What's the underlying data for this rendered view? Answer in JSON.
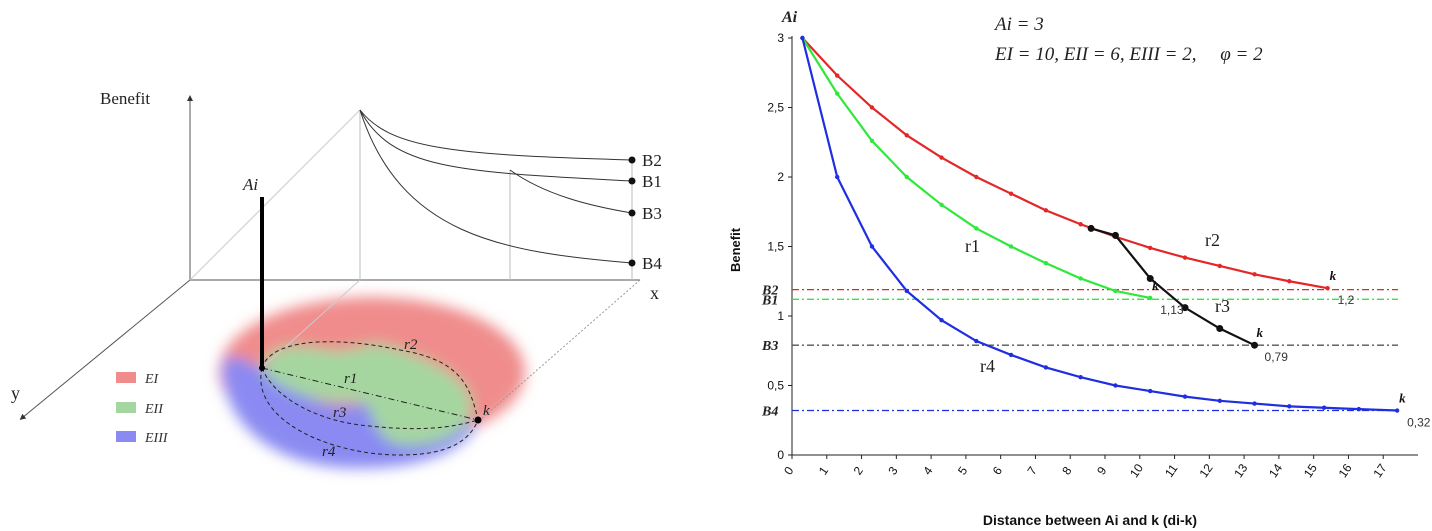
{
  "left_panel": {
    "benefit_axis_label": "Benefit",
    "x_axis_label": "x",
    "y_axis_label": "y",
    "origin_label": "Ai",
    "end_labels": [
      "B2",
      "B1",
      "B3",
      "B4"
    ],
    "route_labels": [
      "r2",
      "r1",
      "r3",
      "r4"
    ],
    "target_label": "k",
    "legend": [
      {
        "label": "EI",
        "color": "#f08c8c"
      },
      {
        "label": "EII",
        "color": "#a6d6a0"
      },
      {
        "label": "EIII",
        "color": "#8a8af2"
      }
    ]
  },
  "chart_data": {
    "type": "line",
    "params": {
      "line1": "Ai = 3",
      "line2": "EI = 10, EII = 6, EIII = 2,     φ = 2"
    },
    "xlabel": "Distance between Ai and k (di-k)",
    "ylabel": "Benefit",
    "xlim": [
      0,
      18
    ],
    "ylim": [
      0,
      3
    ],
    "x_ticks": [
      "0",
      "1",
      "2",
      "3",
      "4",
      "5",
      "6",
      "7",
      "8",
      "9",
      "10",
      "11",
      "12",
      "13",
      "14",
      "15",
      "16",
      "17"
    ],
    "y_ticks": [
      "0",
      "0,5",
      "1",
      "1,5",
      "2",
      "2,5",
      "3"
    ],
    "origin_label": "Ai",
    "series": [
      {
        "name": "r2",
        "color": "#e32727",
        "end_label": "k",
        "end_value_label": "1,2",
        "x": [
          0.3,
          1.3,
          2.3,
          3.3,
          4.3,
          5.3,
          6.3,
          7.3,
          8.3,
          9.3,
          10.3,
          11.3,
          12.3,
          13.3,
          14.3,
          15.4
        ],
        "y": [
          3.0,
          2.73,
          2.5,
          2.3,
          2.14,
          2.0,
          1.88,
          1.76,
          1.66,
          1.57,
          1.49,
          1.42,
          1.36,
          1.3,
          1.25,
          1.2
        ]
      },
      {
        "name": "r1",
        "color": "#2ee83a",
        "end_label": "k",
        "end_value_label": "1,13",
        "x": [
          0.3,
          1.3,
          2.3,
          3.3,
          4.3,
          5.3,
          6.3,
          7.3,
          8.3,
          9.3,
          10.3
        ],
        "y": [
          3.0,
          2.6,
          2.26,
          2.0,
          1.8,
          1.63,
          1.5,
          1.38,
          1.27,
          1.18,
          1.13
        ]
      },
      {
        "name": "r3",
        "color": "#111111",
        "end_label": "k",
        "end_value_label": "0,79",
        "x": [
          8.6,
          9.3,
          10.3,
          11.3,
          12.3,
          13.3
        ],
        "y": [
          1.63,
          1.58,
          1.27,
          1.06,
          0.91,
          0.79
        ]
      },
      {
        "name": "r4",
        "color": "#1f2ee0",
        "end_label": "k",
        "end_value_label": "0,32",
        "x": [
          0.3,
          1.3,
          2.3,
          3.3,
          4.3,
          5.3,
          6.3,
          7.3,
          8.3,
          9.3,
          10.3,
          11.3,
          12.3,
          13.3,
          14.3,
          15.3,
          16.3,
          17.4
        ],
        "y": [
          3.0,
          2.0,
          1.5,
          1.18,
          0.97,
          0.82,
          0.72,
          0.63,
          0.56,
          0.5,
          0.46,
          0.42,
          0.39,
          0.37,
          0.35,
          0.34,
          0.33,
          0.32
        ]
      }
    ],
    "reference_lines": [
      {
        "label": "B2",
        "y": 1.19,
        "color": "#e32727"
      },
      {
        "label": "B1",
        "y": 1.12,
        "color": "#2ee83a"
      },
      {
        "label": "B3",
        "y": 0.79,
        "color": "#555555"
      },
      {
        "label": "B4",
        "y": 0.32,
        "color": "#1f2ee0"
      }
    ]
  }
}
